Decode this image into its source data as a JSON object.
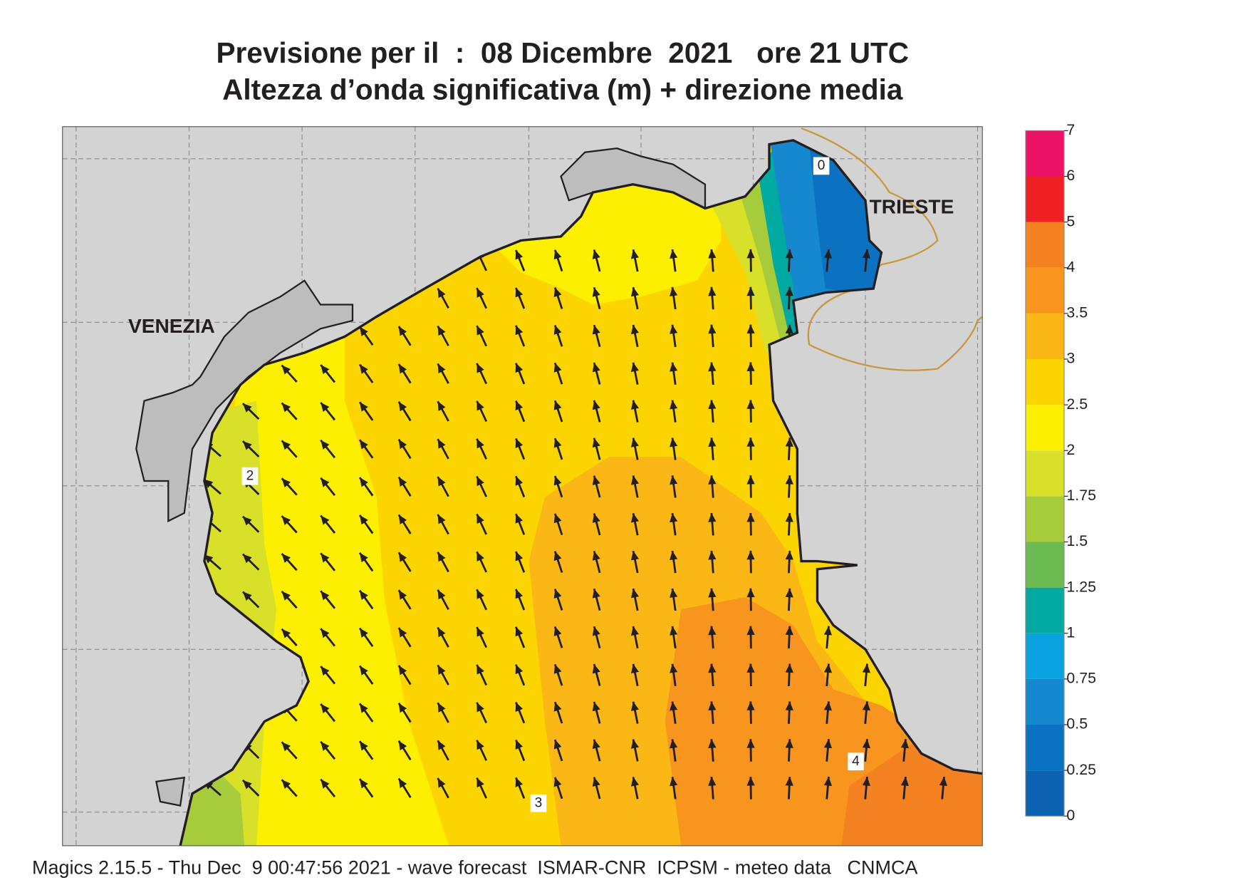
{
  "title": {
    "line1": "Previsione per il  :  08 Dicembre  2021   ore 21 UTC",
    "line2": "Altezza d’onda significativa (m) + direzione media"
  },
  "map": {
    "places": [
      "VENEZIA",
      "TRIESTE"
    ],
    "contour_labels": [
      "2",
      "3",
      "4",
      "0"
    ]
  },
  "colorbar": {
    "ticks": [
      0,
      0.25,
      0.5,
      0.75,
      1,
      1.25,
      1.5,
      1.75,
      2,
      2.5,
      3,
      3.5,
      4,
      5,
      6,
      7
    ],
    "colors": [
      "#0b62b0",
      "#0a72c0",
      "#1588d0",
      "#0aa2e0",
      "#00aaa0",
      "#6cbb52",
      "#a6cc3c",
      "#d8e02a",
      "#fcef00",
      "#fcd500",
      "#fbb716",
      "#f7951f",
      "#f58221",
      "#ee2024",
      "#ec1366"
    ]
  },
  "footer": "Magics 2.15.5 - Thu Dec  9 00:47:56 2021 - wave forecast  ISMAR-CNR  ICPSM - meteo data   CNMCA"
}
